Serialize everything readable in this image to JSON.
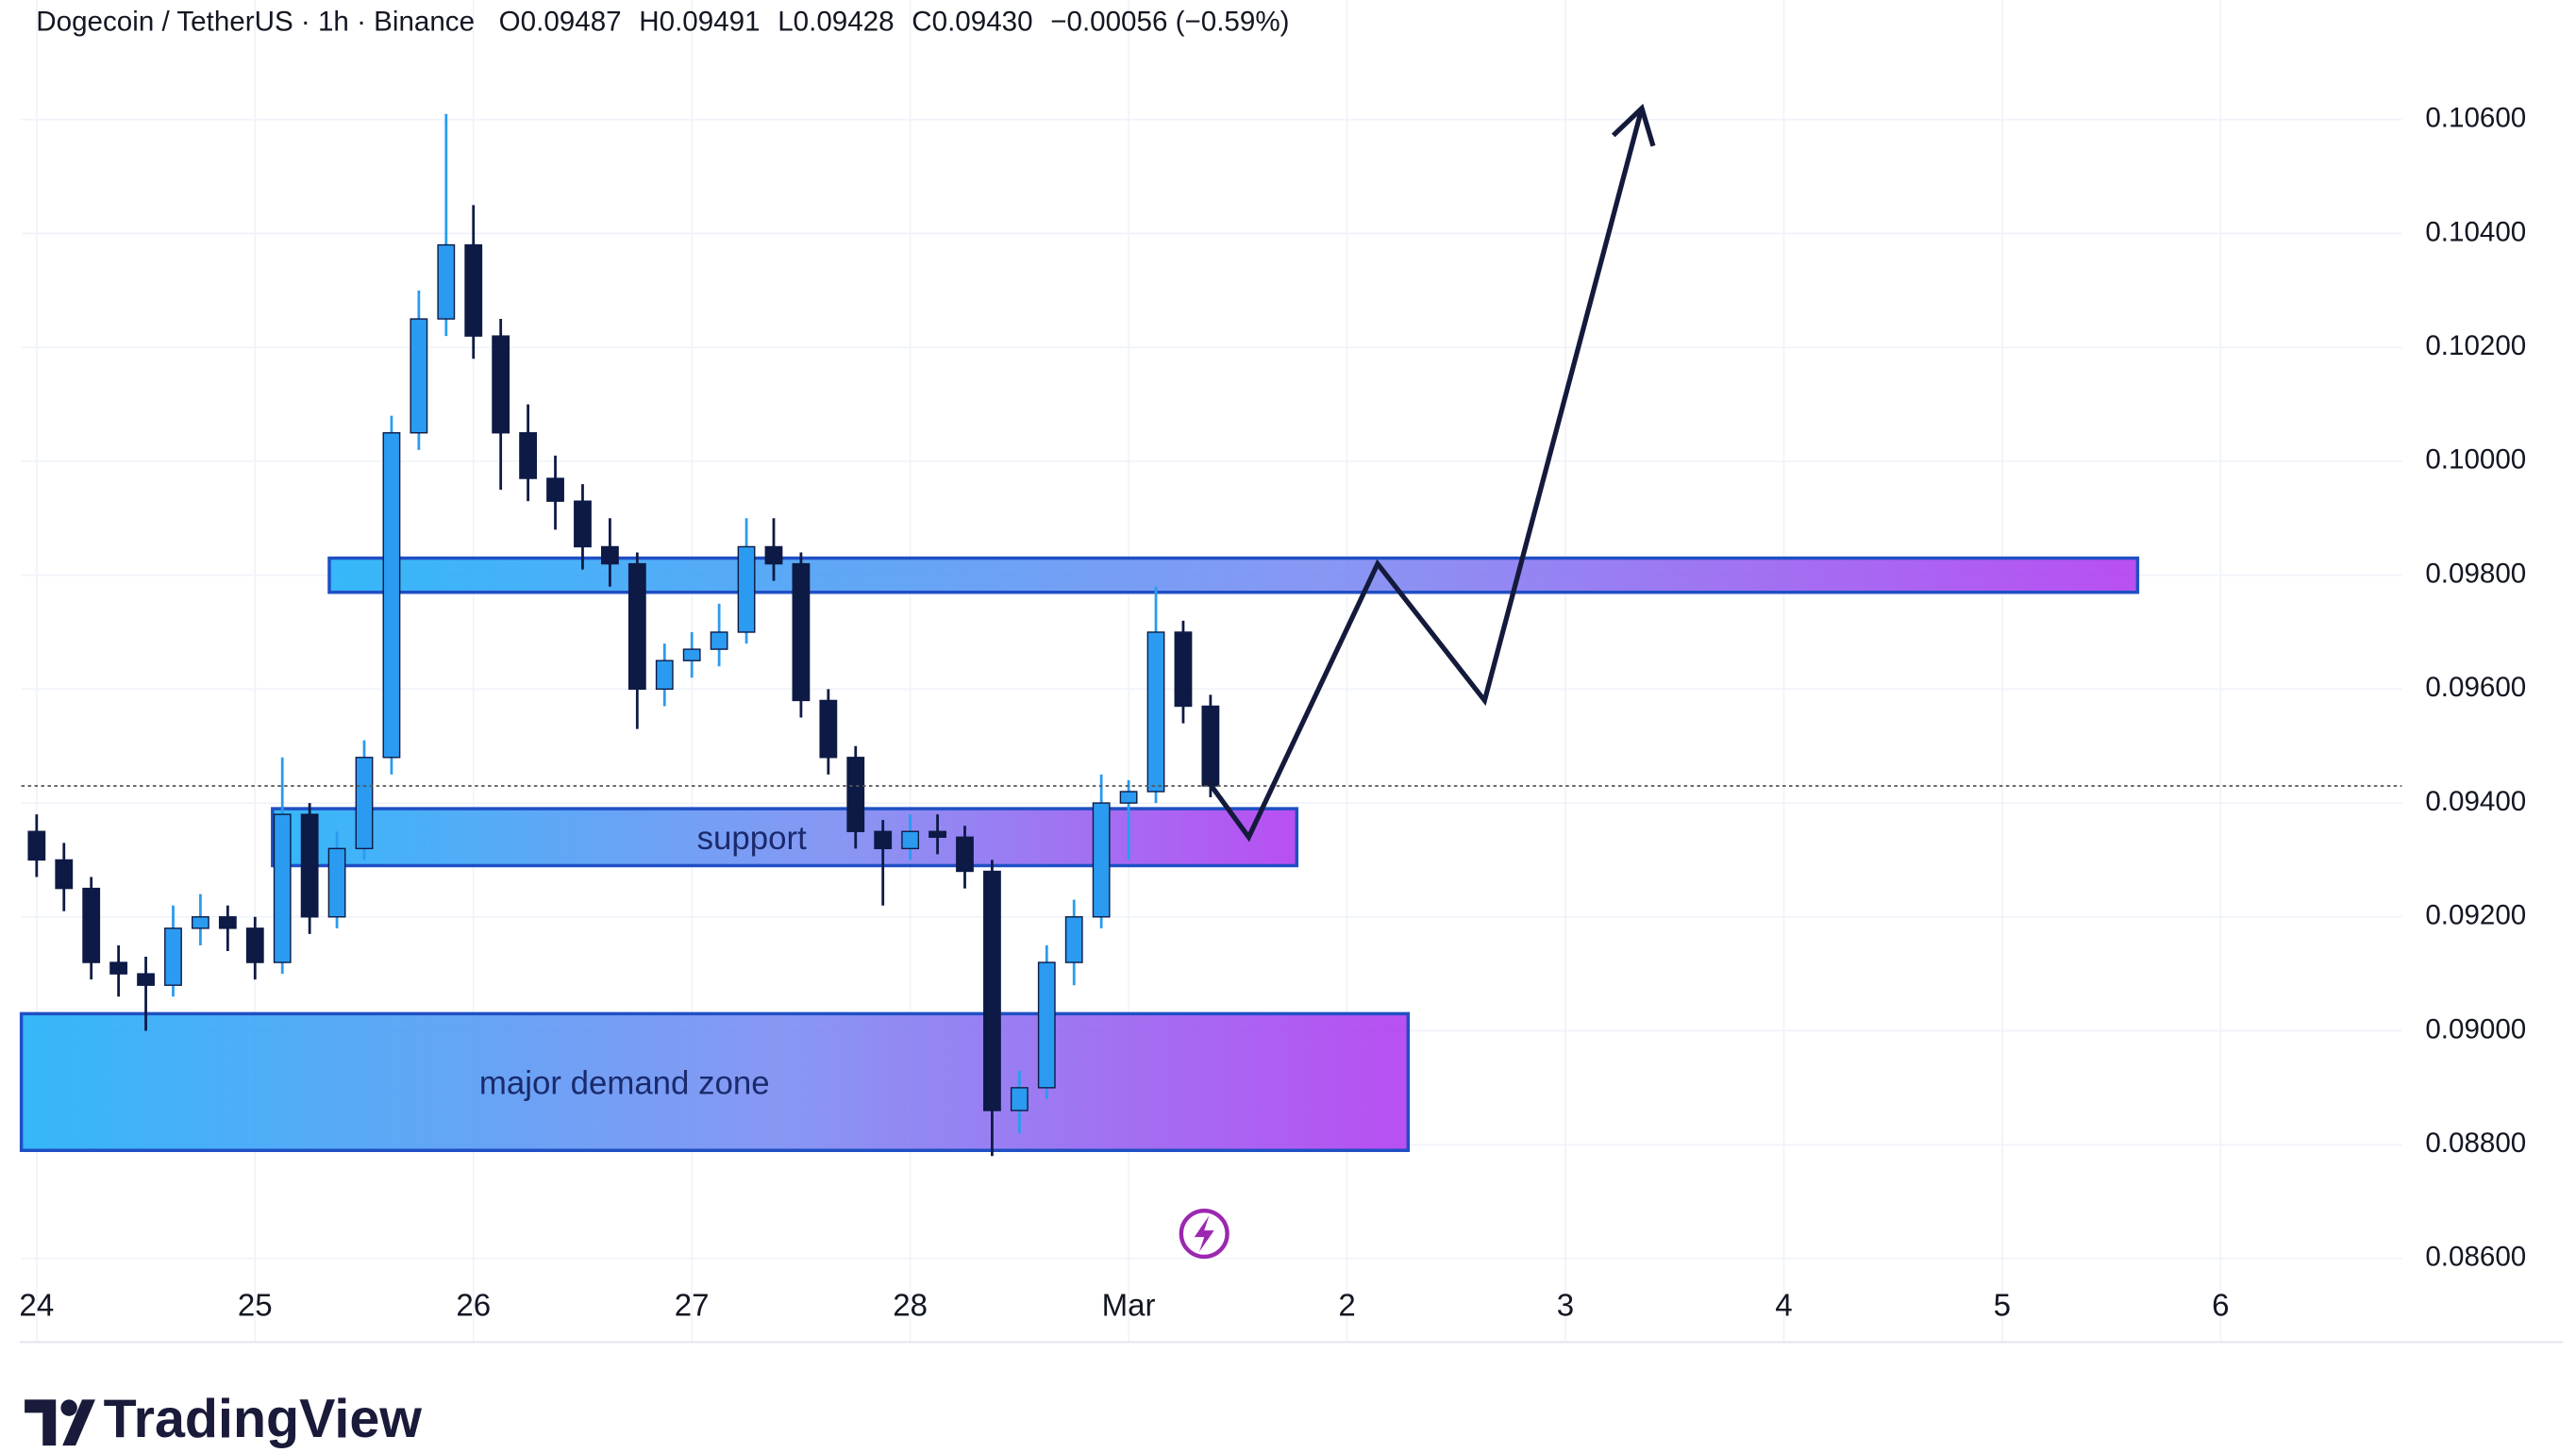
{
  "chart_data": {
    "type": "candlestick",
    "title": "Dogecoin / TetherUS · 1h · Binance",
    "ohlc_text": [
      "O0.09487",
      "H0.09491",
      "L0.09428",
      "C0.09430",
      "−0.00056 (−0.59%)"
    ],
    "up_color": "#2a9bf0",
    "down_color": "#0d1a45",
    "x": [
      0,
      0.125,
      0.25,
      0.375,
      0.5,
      0.625,
      0.75,
      0.875,
      1,
      1.125,
      1.25,
      1.375,
      1.5,
      1.625,
      1.75,
      1.875,
      2,
      2.125,
      2.25,
      2.375,
      2.5,
      2.625,
      2.75,
      2.875,
      3,
      3.125,
      3.25,
      3.375,
      3.5,
      3.625,
      3.75,
      3.875,
      4,
      4.125,
      4.25,
      4.375,
      4.5,
      4.625,
      4.75,
      4.875,
      5,
      5.125,
      5.25,
      5.375
    ],
    "open": [
      0.0935,
      0.093,
      0.0925,
      0.0912,
      0.091,
      0.0908,
      0.0918,
      0.092,
      0.0918,
      0.0912,
      0.0938,
      0.092,
      0.0932,
      0.0948,
      0.1005,
      0.1025,
      0.1038,
      0.1022,
      0.1005,
      0.0997,
      0.0993,
      0.0985,
      0.0982,
      0.096,
      0.0965,
      0.0967,
      0.097,
      0.0985,
      0.0982,
      0.0958,
      0.0948,
      0.0935,
      0.0932,
      0.0935,
      0.0934,
      0.0928,
      0.0886,
      0.089,
      0.0912,
      0.092,
      0.094,
      0.0942,
      0.097,
      0.0957
    ],
    "high": [
      0.0938,
      0.0933,
      0.0927,
      0.0915,
      0.0913,
      0.0922,
      0.0924,
      0.0922,
      0.092,
      0.0948,
      0.094,
      0.0935,
      0.0951,
      0.1008,
      0.103,
      0.1061,
      0.1045,
      0.1025,
      0.101,
      0.1001,
      0.0996,
      0.099,
      0.0984,
      0.0968,
      0.097,
      0.0975,
      0.099,
      0.099,
      0.0984,
      0.096,
      0.095,
      0.0937,
      0.0938,
      0.0938,
      0.0936,
      0.093,
      0.0893,
      0.0915,
      0.0923,
      0.0945,
      0.0944,
      0.0978,
      0.0972,
      0.0959
    ],
    "low": [
      0.0927,
      0.0921,
      0.0909,
      0.0906,
      0.09,
      0.0906,
      0.0915,
      0.0914,
      0.0909,
      0.091,
      0.0917,
      0.0918,
      0.093,
      0.0945,
      0.1002,
      0.1022,
      0.1018,
      0.0995,
      0.0993,
      0.0988,
      0.0981,
      0.0978,
      0.0953,
      0.0957,
      0.0962,
      0.0964,
      0.0968,
      0.0979,
      0.0955,
      0.0945,
      0.0932,
      0.0922,
      0.093,
      0.0931,
      0.0925,
      0.0878,
      0.0882,
      0.0888,
      0.0908,
      0.0918,
      0.093,
      0.094,
      0.0954,
      0.0941
    ],
    "close": [
      0.093,
      0.0925,
      0.0912,
      0.091,
      0.0908,
      0.0918,
      0.092,
      0.0918,
      0.0912,
      0.0938,
      0.092,
      0.0932,
      0.0948,
      0.1005,
      0.1025,
      0.1038,
      0.1022,
      0.1005,
      0.0997,
      0.0993,
      0.0985,
      0.0982,
      0.096,
      0.0965,
      0.0967,
      0.097,
      0.0985,
      0.0982,
      0.0958,
      0.0948,
      0.0935,
      0.0932,
      0.0935,
      0.0934,
      0.0928,
      0.0886,
      0.089,
      0.0912,
      0.092,
      0.094,
      0.0942,
      0.097,
      0.0957,
      0.0943
    ],
    "xlim": [
      -0.07,
      10.83
    ],
    "xticks": [
      {
        "value": 0,
        "label": "24"
      },
      {
        "value": 1,
        "label": "25"
      },
      {
        "value": 2,
        "label": "26"
      },
      {
        "value": 3,
        "label": "27"
      },
      {
        "value": 4,
        "label": "28"
      },
      {
        "value": 5,
        "label": "Mar"
      },
      {
        "value": 6,
        "label": "2"
      },
      {
        "value": 7,
        "label": "3"
      },
      {
        "value": 8,
        "label": "4"
      },
      {
        "value": 9,
        "label": "5"
      },
      {
        "value": 10,
        "label": "6"
      }
    ],
    "ylim": [
      0.0856,
      0.1081
    ],
    "yticks": [
      {
        "value": 0.106,
        "label": "0.10600"
      },
      {
        "value": 0.104,
        "label": "0.10400"
      },
      {
        "value": 0.102,
        "label": "0.10200"
      },
      {
        "value": 0.1,
        "label": "0.10000"
      },
      {
        "value": 0.098,
        "label": "0.09800"
      },
      {
        "value": 0.096,
        "label": "0.09600"
      },
      {
        "value": 0.094,
        "label": "0.09400"
      },
      {
        "value": 0.092,
        "label": "0.09200"
      },
      {
        "value": 0.09,
        "label": "0.09000"
      },
      {
        "value": 0.088,
        "label": "0.08800"
      },
      {
        "value": 0.086,
        "label": "0.08600"
      }
    ],
    "grid": true,
    "zones": [
      {
        "top": 0.0983,
        "bottom": 0.0977,
        "start": 1.34,
        "end": 9.62
      },
      {
        "label": "support",
        "top": 0.0939,
        "bottom": 0.0929,
        "start": 1.08,
        "end": 5.77
      },
      {
        "label": "major demand zone",
        "top": 0.0903,
        "bottom": 0.0879,
        "start": -0.07,
        "end": 6.28
      }
    ],
    "projection": {
      "color": "#141a3c",
      "x": [
        5.36,
        5.55,
        6.14,
        6.63,
        7.35
      ],
      "y": [
        0.0944,
        0.0934,
        0.0982,
        0.0958,
        0.1062
      ]
    }
  },
  "footer": {
    "brand": "TradingView"
  }
}
